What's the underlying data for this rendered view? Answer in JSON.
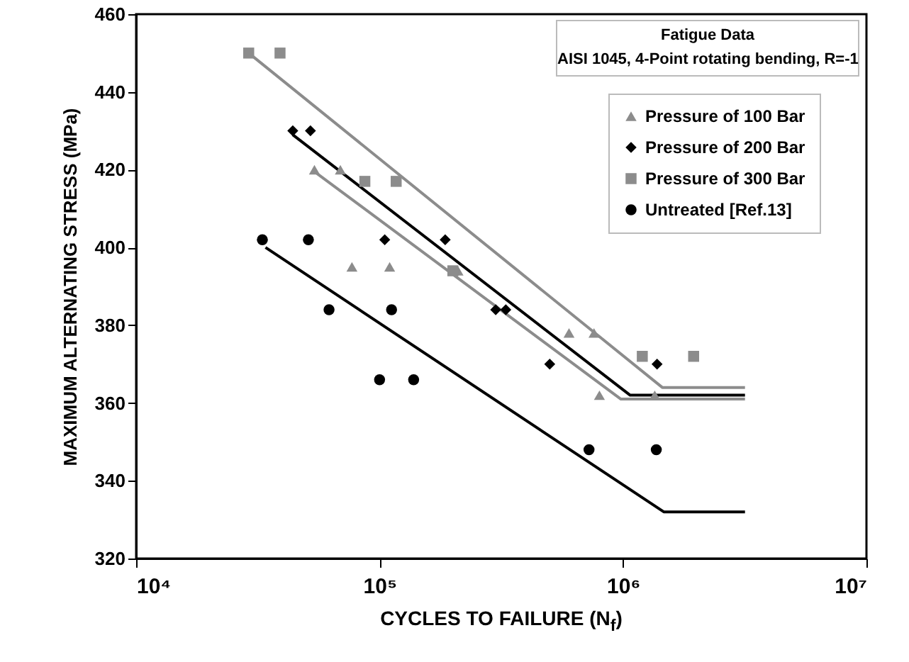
{
  "chart_data": {
    "type": "scatter",
    "xlabel": "CYCLES TO FAILURE  (N$_{f}$)",
    "ylabel": "MAXIMUM ALTERNATING STRESS (MPa)",
    "annotations": [
      "Fatigue Data",
      "AISI 1045, 4-Point rotating bending, R=-1"
    ],
    "log": "x",
    "grid": false,
    "legend": "top right",
    "xlim": [
      10000,
      10000000
    ],
    "xticks": [
      {
        "value": 10000,
        "label": "10⁴"
      },
      {
        "value": 100000,
        "label": "10⁵"
      },
      {
        "value": 1000000,
        "label": "10⁶"
      },
      {
        "value": 10000000,
        "label": "10⁷"
      }
    ],
    "ylim": [
      320,
      460
    ],
    "yticks": [
      320,
      340,
      360,
      380,
      400,
      420,
      440,
      460
    ],
    "series": [
      {
        "name": "Pressure of 100 Bar",
        "marker": "triangle",
        "color": "#8c8c8c",
        "x": [
          54000,
          69000,
          77000,
          110000,
          210000,
          600000,
          760000,
          800000,
          1350000
        ],
        "values": [
          420,
          420,
          395,
          395,
          394,
          378,
          378,
          362,
          362
        ]
      },
      {
        "name": "Pressure of 200 Bar",
        "marker": "diamond",
        "color": "#000000",
        "x": [
          44000,
          52000,
          105000,
          186000,
          300000,
          330000,
          500000,
          1380000
        ],
        "values": [
          430,
          430,
          402,
          402,
          384,
          384,
          370,
          370
        ]
      },
      {
        "name": "Pressure of 300 Bar",
        "marker": "square",
        "color": "#8c8c8c",
        "x": [
          29000,
          39000,
          87000,
          117000,
          200000,
          1200000,
          1950000
        ],
        "values": [
          450,
          450,
          417,
          417,
          394,
          372,
          372
        ]
      },
      {
        "name": "Untreated [Ref.13]",
        "marker": "circle",
        "color": "#000000",
        "x": [
          33000,
          51000,
          62000,
          112000,
          100000,
          138000,
          725000,
          1370000
        ],
        "values": [
          402,
          402,
          384,
          384,
          366,
          366,
          348,
          348
        ]
      },
      {
        "type": "line",
        "color": "#8c8c8c",
        "x": [
          29000,
          1450000,
          3170000
        ],
        "values": [
          450,
          364,
          364
        ]
      },
      {
        "type": "line",
        "color": "#000000",
        "x": [
          44000,
          1070000,
          3170000
        ],
        "values": [
          429,
          362,
          362
        ]
      },
      {
        "type": "line",
        "color": "#8c8c8c",
        "x": [
          54000,
          980000,
          3170000
        ],
        "values": [
          419.5,
          361,
          361
        ]
      },
      {
        "type": "line",
        "color": "#000000",
        "x": [
          34000,
          1470000,
          3170000
        ],
        "values": [
          400,
          332,
          332
        ]
      }
    ]
  }
}
